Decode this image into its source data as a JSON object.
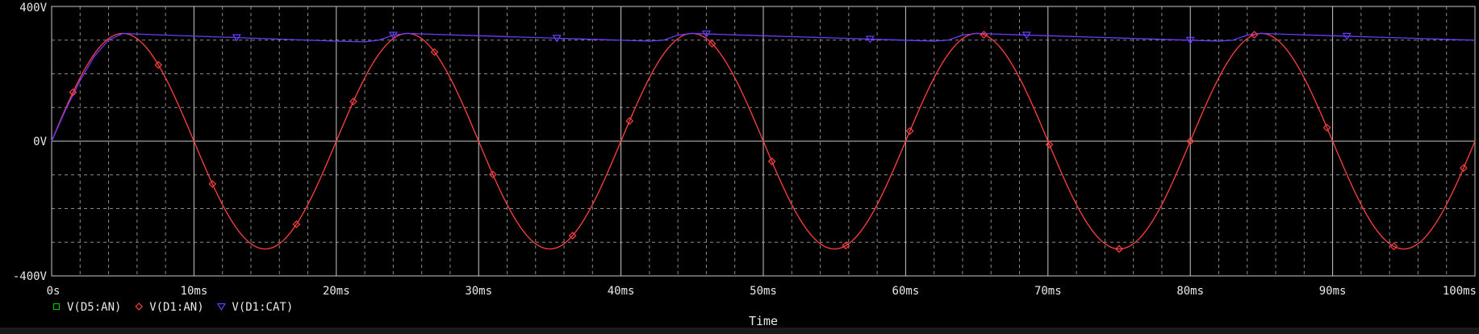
{
  "chart_data": {
    "type": "line",
    "xlabel": "Time",
    "xlim": [
      0,
      100
    ],
    "ylim": [
      -400,
      400
    ],
    "x_ticks": [
      0,
      10,
      20,
      30,
      40,
      50,
      60,
      70,
      80,
      90,
      100
    ],
    "x_tick_labels": [
      "0s",
      "10ms",
      "20ms",
      "30ms",
      "40ms",
      "50ms",
      "60ms",
      "70ms",
      "80ms",
      "90ms",
      "100ms"
    ],
    "y_ticks": [
      -400,
      0,
      400
    ],
    "y_tick_labels": [
      "-400V",
      "0V",
      "400V"
    ],
    "grid": true,
    "background": "#000000",
    "series": [
      {
        "name": "V(D5:AN)",
        "color": "#00c000",
        "marker": "square",
        "points": []
      },
      {
        "name": "V(D1:AN)",
        "color": "#ff4040",
        "marker": "diamond",
        "points": [
          [
            0,
            0
          ],
          [
            1,
            95
          ],
          [
            2,
            180
          ],
          [
            3,
            252
          ],
          [
            4,
            300
          ],
          [
            5,
            320
          ],
          [
            6,
            300
          ],
          [
            7,
            252
          ],
          [
            8,
            180
          ],
          [
            9,
            95
          ],
          [
            10,
            0
          ],
          [
            11,
            -95
          ],
          [
            12,
            -180
          ],
          [
            13,
            -252
          ],
          [
            14,
            -300
          ],
          [
            15,
            -320
          ],
          [
            16,
            -300
          ],
          [
            17,
            -252
          ],
          [
            18,
            -180
          ],
          [
            19,
            -95
          ],
          [
            20,
            0
          ],
          [
            21,
            95
          ],
          [
            22,
            180
          ],
          [
            23,
            252
          ],
          [
            24,
            300
          ],
          [
            25,
            320
          ],
          [
            26,
            300
          ],
          [
            27,
            252
          ],
          [
            28,
            180
          ],
          [
            29,
            95
          ],
          [
            30,
            0
          ],
          [
            31,
            -95
          ],
          [
            32,
            -180
          ],
          [
            33,
            -252
          ],
          [
            34,
            -300
          ],
          [
            35,
            -320
          ],
          [
            36,
            -300
          ],
          [
            37,
            -252
          ],
          [
            38,
            -180
          ],
          [
            39,
            -95
          ],
          [
            40,
            0
          ],
          [
            41,
            95
          ],
          [
            42,
            180
          ],
          [
            43,
            252
          ],
          [
            44,
            300
          ],
          [
            45,
            320
          ],
          [
            46,
            300
          ],
          [
            47,
            252
          ],
          [
            48,
            180
          ],
          [
            49,
            95
          ],
          [
            50,
            0
          ],
          [
            51,
            -95
          ],
          [
            52,
            -180
          ],
          [
            53,
            -252
          ],
          [
            54,
            -300
          ],
          [
            55,
            -320
          ],
          [
            56,
            -300
          ],
          [
            57,
            -252
          ],
          [
            58,
            -180
          ],
          [
            59,
            -95
          ],
          [
            60,
            0
          ],
          [
            61,
            95
          ],
          [
            62,
            180
          ],
          [
            63,
            252
          ],
          [
            64,
            300
          ],
          [
            65,
            320
          ],
          [
            66,
            300
          ],
          [
            67,
            252
          ],
          [
            68,
            180
          ],
          [
            69,
            95
          ],
          [
            70,
            0
          ],
          [
            71,
            -95
          ],
          [
            72,
            -180
          ],
          [
            73,
            -252
          ],
          [
            74,
            -300
          ],
          [
            75,
            -320
          ],
          [
            76,
            -300
          ],
          [
            77,
            -252
          ],
          [
            78,
            -180
          ],
          [
            79,
            -95
          ],
          [
            80,
            0
          ],
          [
            81,
            95
          ],
          [
            82,
            180
          ],
          [
            83,
            252
          ],
          [
            84,
            300
          ],
          [
            85,
            320
          ],
          [
            86,
            300
          ],
          [
            87,
            252
          ],
          [
            88,
            180
          ],
          [
            89,
            95
          ],
          [
            90,
            0
          ],
          [
            91,
            -95
          ],
          [
            92,
            -180
          ],
          [
            93,
            -252
          ],
          [
            94,
            -300
          ],
          [
            95,
            -320
          ],
          [
            96,
            -300
          ],
          [
            97,
            -252
          ],
          [
            98,
            -180
          ],
          [
            99,
            -95
          ],
          [
            100,
            0
          ]
        ],
        "marker_x": [
          1.5,
          7.5,
          11.3,
          17.2,
          21.2,
          26.9,
          31.0,
          36.6,
          40.6,
          46.4,
          50.6,
          55.8,
          60.3,
          65.5,
          70.1,
          75.0,
          80.0,
          84.5,
          89.6,
          94.3,
          99.2
        ]
      },
      {
        "name": "V(D1:CAT)",
        "color": "#6a3cff",
        "marker": "triangle-down",
        "points": [
          [
            0,
            0
          ],
          [
            1,
            95
          ],
          [
            2,
            180
          ],
          [
            3,
            252
          ],
          [
            4,
            300
          ],
          [
            5,
            320
          ],
          [
            6,
            318
          ],
          [
            8,
            315
          ],
          [
            10,
            312
          ],
          [
            12,
            309
          ],
          [
            14,
            306
          ],
          [
            16,
            303
          ],
          [
            18,
            300
          ],
          [
            20,
            297
          ],
          [
            22,
            295
          ],
          [
            23,
            300
          ],
          [
            24,
            315
          ],
          [
            25,
            320
          ],
          [
            27,
            317
          ],
          [
            30,
            313
          ],
          [
            33,
            309
          ],
          [
            36,
            305
          ],
          [
            39,
            301
          ],
          [
            42,
            297
          ],
          [
            43,
            300
          ],
          [
            44,
            315
          ],
          [
            45,
            320
          ],
          [
            47,
            317
          ],
          [
            50,
            313
          ],
          [
            53,
            309
          ],
          [
            56,
            305
          ],
          [
            59,
            301
          ],
          [
            62,
            297
          ],
          [
            63,
            300
          ],
          [
            64,
            315
          ],
          [
            65,
            320
          ],
          [
            67,
            317
          ],
          [
            70,
            313
          ],
          [
            73,
            309
          ],
          [
            76,
            305
          ],
          [
            79,
            301
          ],
          [
            82,
            297
          ],
          [
            83,
            300
          ],
          [
            84,
            315
          ],
          [
            85,
            320
          ],
          [
            87,
            317
          ],
          [
            90,
            313
          ],
          [
            93,
            309
          ],
          [
            96,
            305
          ],
          [
            99,
            301
          ],
          [
            100,
            300
          ]
        ],
        "marker_x": [
          13.0,
          24.0,
          35.5,
          46.0,
          57.5,
          68.5,
          80.0,
          91.0
        ]
      }
    ],
    "legend_placement": "bottom-left"
  }
}
